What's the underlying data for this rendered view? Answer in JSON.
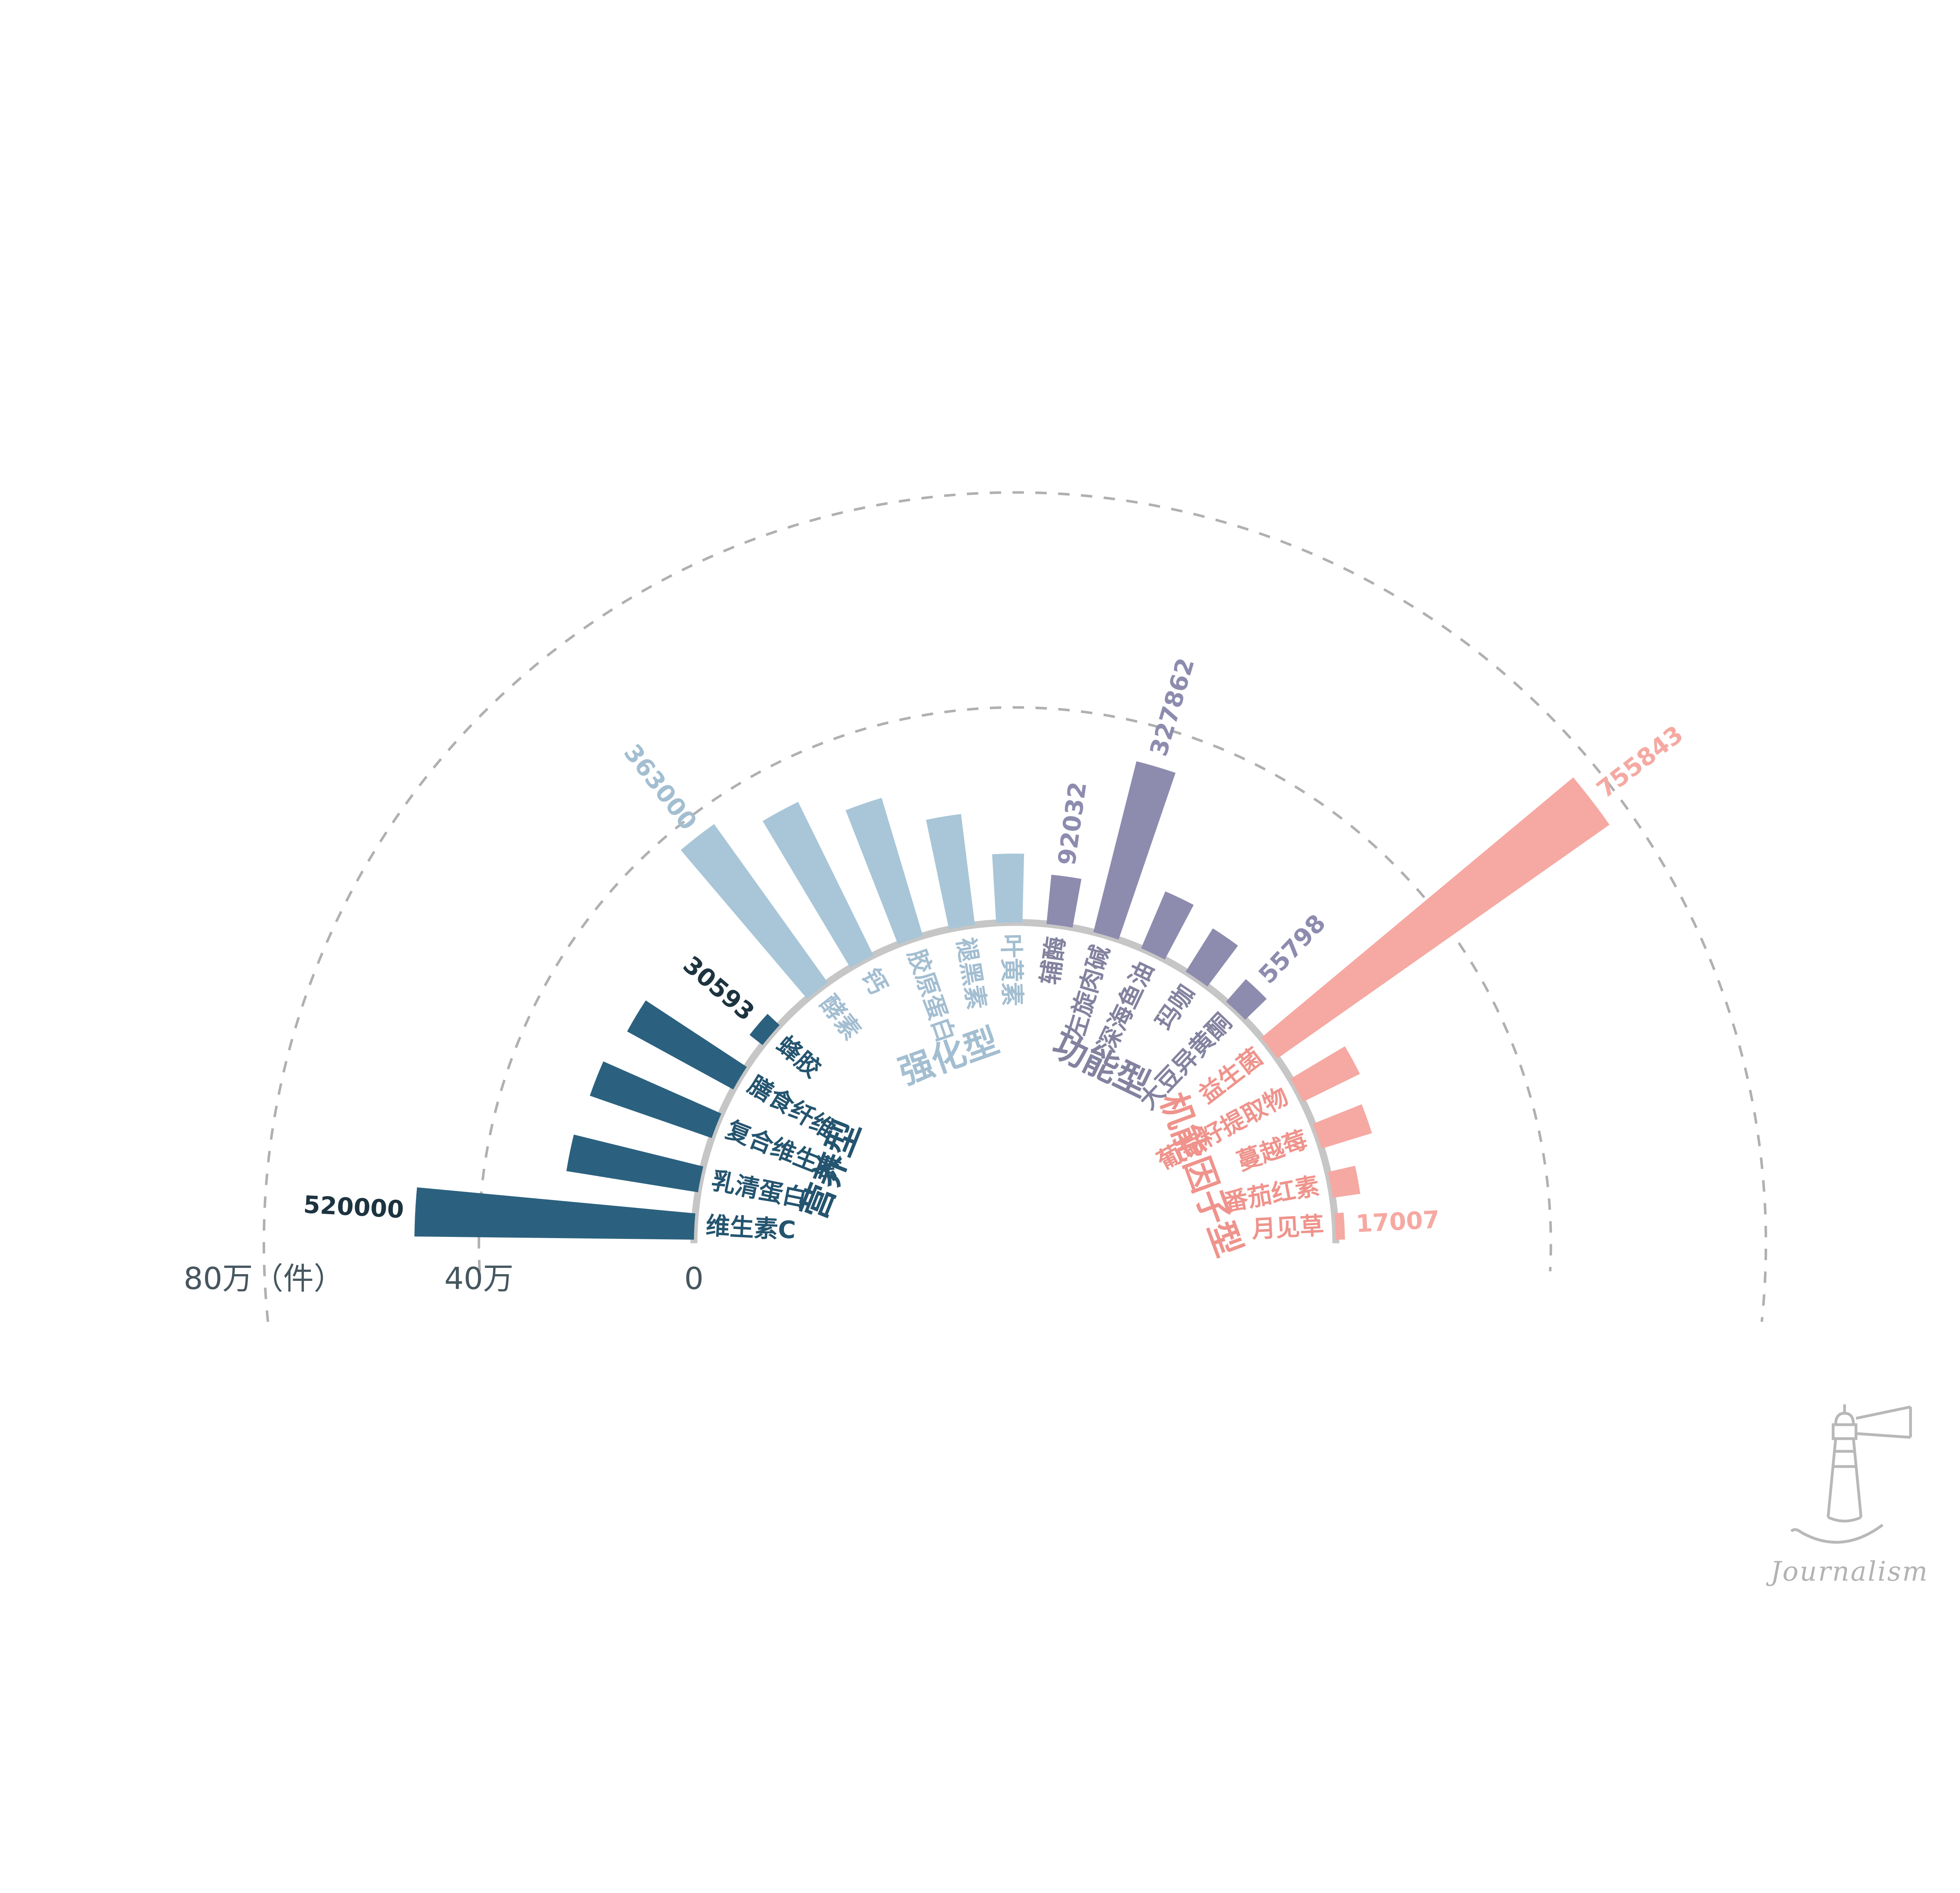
{
  "chart_data": {
    "type": "bar",
    "subtype": "radial_half_circle",
    "unit": "件",
    "ylim": [
      0,
      800000
    ],
    "grid": "dashed_arcs",
    "axis": {
      "ticks": [
        {
          "label": "80万（件）",
          "value": 800000
        },
        {
          "label": "40万",
          "value": 400000
        },
        {
          "label": "0",
          "value": 0
        }
      ],
      "label_color": "#46565e"
    },
    "groups": [
      {
        "name": "营养型",
        "bar_color": "#2b617f",
        "label_color": "#24546f",
        "value_color": "#1d3440",
        "items": [
          {
            "label": "维生素C",
            "value": 520000,
            "value_label": "520000"
          },
          {
            "label": "乳清蛋白",
            "value": 248000
          },
          {
            "label": "复合维生素",
            "value": 240000
          },
          {
            "label": "膳食纤维",
            "value": 225000
          },
          {
            "label": "蜂胶",
            "value": 30593,
            "value_label": "30593"
          }
        ]
      },
      {
        "name": "强化型",
        "bar_color": "#a9c6d8",
        "label_color": "#a3bed1",
        "value_color": "#a3bed1",
        "items": [
          {
            "label": "酵素",
            "value": 363000,
            "value_label": "363000"
          },
          {
            "label": "钙",
            "value": 318000
          },
          {
            "label": "胶原蛋白",
            "value": 268000
          },
          {
            "label": "褪黑素",
            "value": 208000
          },
          {
            "label": "叶黄素",
            "value": 128000
          }
        ]
      },
      {
        "name": "功能型",
        "bar_color": "#8d8caf",
        "label_color": "#83829f",
        "value_color": "#8d8caf",
        "items": [
          {
            "label": "辅酶",
            "value": 92032,
            "value_label": "92032"
          },
          {
            "label": "左旋肉碱",
            "value": 327862,
            "value_label": "327862"
          },
          {
            "label": "深海鱼油",
            "value": 115000
          },
          {
            "label": "玛咖",
            "value": 95000
          },
          {
            "label": "大豆异黄酮",
            "value": 55798,
            "value_label": "55798"
          }
        ]
      },
      {
        "name": "机能因子型",
        "bar_color": "#f5a9a2",
        "label_color": "#ef938c",
        "value_color": "#f5a9a2",
        "items": [
          {
            "label": "益生菌",
            "value": 755843,
            "value_label": "755843"
          },
          {
            "label": "葡萄籽提取物",
            "value": 118000
          },
          {
            "label": "蔓越莓",
            "value": 98000
          },
          {
            "label": "番茄红素",
            "value": 52000
          },
          {
            "label": "月见草",
            "value": 17007,
            "value_label": "17007"
          }
        ]
      }
    ]
  },
  "watermark": {
    "text": "Journalism"
  }
}
